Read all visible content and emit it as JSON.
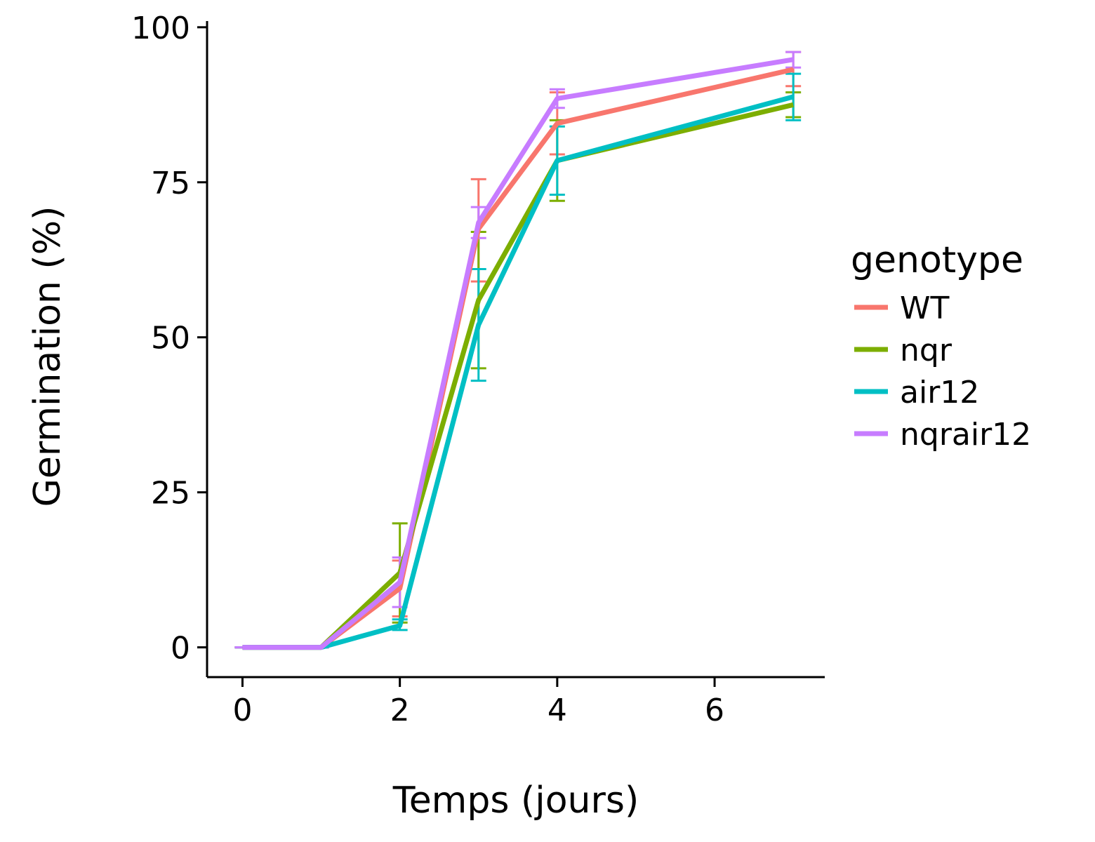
{
  "chart_data": {
    "type": "line",
    "xlabel": "Temps (jours)",
    "ylabel": "Germination (%)",
    "xlim": [
      -0.45,
      7.4
    ],
    "ylim": [
      -4.8,
      101
    ],
    "x_ticks": [
      0,
      2,
      4,
      6
    ],
    "y_ticks": [
      0,
      25,
      50,
      75,
      100
    ],
    "grid": false,
    "legend": {
      "title": "genotype",
      "position": "right"
    },
    "x": [
      0,
      1,
      2,
      3,
      4,
      7
    ],
    "series": [
      {
        "name": "WT",
        "color": "#F8766D",
        "values": [
          0,
          0,
          9.5,
          67.5,
          84.5,
          93.2
        ],
        "err_low": [
          0,
          0,
          5,
          59,
          79.5,
          90.5
        ],
        "err_high": [
          0,
          0,
          14,
          75.5,
          89.5,
          96
        ]
      },
      {
        "name": "nqr",
        "color": "#7CAE00",
        "values": [
          0,
          0,
          12,
          56,
          78.5,
          87.5
        ],
        "err_low": [
          0,
          0,
          4,
          45,
          72,
          85.5
        ],
        "err_high": [
          0,
          0,
          20,
          67,
          85,
          89.5
        ]
      },
      {
        "name": "air12",
        "color": "#00BFC4",
        "values": [
          0,
          0,
          3.5,
          52,
          78.5,
          88.8
        ],
        "err_low": [
          0,
          0,
          2.8,
          43,
          73,
          85
        ],
        "err_high": [
          0,
          0,
          4.5,
          61,
          84,
          92.5
        ]
      },
      {
        "name": "nqrair12",
        "color": "#C77CFF",
        "values": [
          0,
          0,
          10.5,
          68.5,
          88.5,
          94.8
        ],
        "err_low": [
          0,
          0,
          6.5,
          66,
          87,
          93.5
        ],
        "err_high": [
          0,
          0,
          14.5,
          71,
          90,
          96
        ]
      }
    ]
  }
}
